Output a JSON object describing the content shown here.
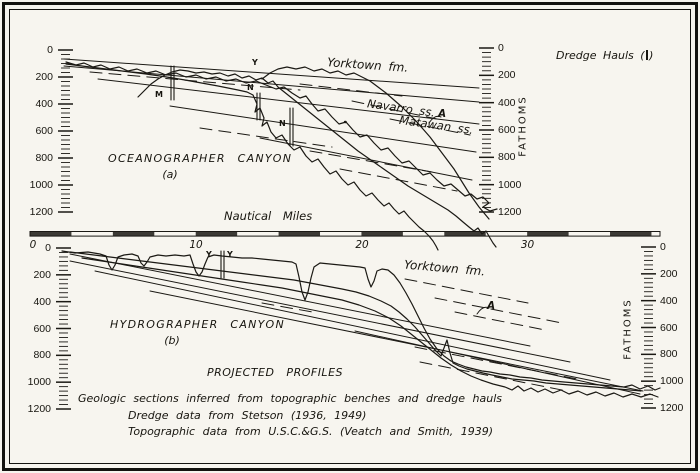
{
  "legend": {
    "label": "Dredge Hauls",
    "paren_open": "(",
    "paren_close": ")",
    "symbol": "dredge-haul-vertical-bar"
  },
  "x_axis": {
    "title": "Nautical Miles",
    "ticks": [
      "0",
      "10",
      "20",
      "30"
    ]
  },
  "y_axis": {
    "unit": "FATHOMS",
    "ticks": [
      "0",
      "200",
      "400",
      "600",
      "800",
      "1000",
      "1200"
    ]
  },
  "panels": [
    {
      "title": "OCEANOGRAPHER  CANYON",
      "subtitle": "(a)",
      "strata": {
        "yorktown": "Yorktown  fm.",
        "navarro": "Navarro  ss.",
        "matawan": "Matawan  ss."
      },
      "section_label": "A",
      "markers": [
        "M",
        "Y",
        "N",
        "N"
      ]
    },
    {
      "title": "HYDROGRAPHER  CANYON",
      "subtitle": "(b)",
      "strata": {
        "yorktown": "Yorktown  fm."
      },
      "section_label": "A",
      "markers": [
        "Y",
        "Y"
      ]
    }
  ],
  "captions": {
    "title": "PROJECTED  PROFILES",
    "line1": "Geologic sections inferred from topographic benches and dredge hauls",
    "line2": "Dredge data from Stetson (1936, 1949)",
    "line3": "Topographic data from U.S.C.&G.S. (Veatch and Smith, 1939)"
  },
  "chart_data": {
    "type": "line",
    "title": "Projected profiles with geologic sections inferred from topographic benches and dredge hauls",
    "xlabel": "Nautical Miles",
    "x_ticks": [
      0,
      10,
      20,
      30
    ],
    "ylabel": "Fathoms",
    "y_ticks": [
      0,
      200,
      400,
      600,
      800,
      1000,
      1200
    ],
    "panels": [
      {
        "label": "Oceanographer Canyon (a)",
        "strata": [
          "Yorktown fm.",
          "Navarro ss.",
          "Matawan ss."
        ],
        "dredge_markers": [
          "M",
          "Y",
          "N",
          "N"
        ]
      },
      {
        "label": "Hydrographer Canyon (b)",
        "strata": [
          "Yorktown fm."
        ],
        "dredge_markers": [
          "Y",
          "Y"
        ]
      }
    ]
  },
  "drawing": {
    "stroke": "#1b1914",
    "groups": [
      {
        "name": "top-strata-solid",
        "w": 1,
        "paths": [
          "M64,59 L479,88",
          "M64,66 L479,102",
          "M98,79 L479,124",
          "M170,106 L476,152",
          "M260,138 L472,180"
        ]
      },
      {
        "name": "top-strata-dashed",
        "w": 1,
        "dash": "12 7",
        "paths": [
          "M90,72 L300,90",
          "M300,84 L402,96",
          "M352,101 L437,119",
          "M390,119 L470,135",
          "M200,128 L332,147",
          "M310,151 L432,172",
          "M340,169 L457,191"
        ]
      },
      {
        "name": "top-profile-1",
        "w": 1.2,
        "paths": [
          "M66,62 L76,65 84,63 93,67 101,65 110,69 119,67 128,71 137,69 147,73 156,71 166,75 176,73 186,77 196,75 206,79 216,77 226,81 236,79 246,83 256,81 266,85 276,89 284,87 292,93 300,98 306,96 312,104 318,111 325,109 332,117 339,124 346,122 353,130 360,137 367,135 374,143 381,150 388,148 395,156 402,163 409,161 416,168 423,175 430,173 437,180 444,186 451,184 458,190 465,196 471,194 477,199 483,197 489,203 483,207 490,211 497,209"
        ]
      },
      {
        "name": "top-profile-2",
        "w": 1.2,
        "paths": [
          "M138,97 L145,90 151,84 158,79 165,75 172,72 180,70 188,71 196,73 204,72 212,74 220,73 228,76 235,74 242,78 249,76 256,80 262,78 268,83 273,81 278,87 288,95 298,103 308,111 318,119 328,127 338,135 348,143 358,151 368,158 378,165 388,172 398,179 408,186 418,192 428,198 438,204 448,210 456,216 463,222 469,227 474,231 478,228 482,234 486,231 490,238 493,243 496,247"
        ]
      },
      {
        "name": "top-profile-3",
        "w": 1.2,
        "paths": [
          "M66,64 L82,66 98,68 114,70 130,72 146,74 160,76 173,78 185,80 196,82 207,84 218,86 228,88 238,90 247,92 253,95 257,104 255,112 260,108 264,118 262,126 267,122 271,132 276,138 282,135 288,144 294,150 300,147 306,156 312,162 318,159 324,167 330,174 336,171 342,179 348,185 354,182 360,190 366,196 372,193 378,200 384,206 389,203 394,209 399,214 404,211 409,217 414,222 419,227 424,231 429,236 433,241 436,246 438,250"
        ]
      },
      {
        "name": "top-profile-4",
        "w": 1.2,
        "paths": [
          "M262,79 L270,73 278,69 287,67 296,69 305,67 314,71 322,69 330,73 338,71 346,75 354,73 362,77 370,81 378,87 386,93 394,100 402,107 409,114 416,121 423,129 430,137 436,145 442,153 448,161 454,169 459,177 464,185 469,193 474,200 479,207 484,213 489,219"
        ]
      },
      {
        "name": "top-dredge-bars",
        "w": 1.1,
        "paths": [
          "M171,66 L171,100",
          "M174,66 L174,100",
          "M257,93 L257,120",
          "M260,93 L260,120",
          "M290,108 L290,146",
          "M293,108 L293,146"
        ]
      },
      {
        "name": "top-a-arrow",
        "w": 1,
        "paths": [
          "M429,123 Q435,114 441,117"
        ]
      },
      {
        "name": "dredge-dot",
        "w": 2.4,
        "paths": [
          "M345,122 L345.6,122"
        ]
      },
      {
        "name": "bottom-strata-solid",
        "w": 1,
        "paths": [
          "M70,254 L530,346",
          "M70,261 L570,362",
          "M95,271 L610,380",
          "M150,291 L643,391",
          "M355,331 L640,394"
        ]
      },
      {
        "name": "bottom-strata-dashed",
        "w": 1,
        "dash": "12 7",
        "paths": [
          "M405,279 L528,303",
          "M435,298 L562,323",
          "M455,312 L545,330",
          "M415,347 L577,379",
          "M420,362 L567,391",
          "M262,303 L318,313"
        ]
      },
      {
        "name": "bottom-profile-1",
        "w": 1.2,
        "paths": [
          "M62,251 L75,253 88,252 100,254 106,256 109,265 112,270 115,265 118,257 124,255 132,254 138,256 141,263 144,266 147,262 150,257 158,255 166,256 175,255 184,256 190,255 193,264 196,272 199,276 202,272 205,264 208,257 214,255 222,256 232,257 242,258 252,258 262,259 272,260 282,261 292,262 296,264 299,277 302,292 305,300 308,292 311,278 314,267 320,263 330,264 340,265 350,266 360,267 365,268 368,279 371,287 374,281 377,271 382,269 388,270 394,275 400,283 406,293 412,304 418,316 424,328 430,339 437,349 444,356 451,361 458,364 466,367 474,369 482,371 490,372 500,374 510,375 520,377 531,378 542,380 553,381 564,382 576,383 588,384 600,385 612,386 624,387 632,385 640,389 648,386 655,390 660,388"
        ]
      },
      {
        "name": "bottom-profile-2",
        "w": 1.2,
        "paths": [
          "M70,252 L86,254 102,256 118,258 134,260 150,262 166,264 182,266 198,268 214,270 230,272 246,274 262,276 278,278 294,280 310,283 326,286 342,289 356,292 369,296 381,301 391,306 399,312 407,319 415,327 422,335 429,343 435,350 441,356 444,348 447,340 450,353 453,363 459,366 467,369 475,371 483,373 492,375 502,377 512,379 523,380 534,381 546,383 558,384 570,385 582,386 594,387 606,388 618,389 630,390 641,391"
        ]
      },
      {
        "name": "bottom-profile-3",
        "w": 1.2,
        "paths": [
          "M82,258 L102,261 122,264 142,267 162,270 182,273 202,276 222,279 242,282 262,285 282,288 302,292 322,296 342,300 359,305 375,311 389,318 401,326 411,334 421,342 431,350 441,358 451,365 461,371 471,376 481,380 493,384 505,387 512,390 518,386 524,391 531,388 538,392 545,389 553,393 561,390 569,394 578,391 587,395 596,392 605,396 614,393 623,397 632,394 641,397 650,394 658,397"
        ]
      },
      {
        "name": "bottom-dredge-bars",
        "w": 1.1,
        "paths": [
          "M221,251 L221,278",
          "M224,251 L224,278"
        ]
      },
      {
        "name": "bottom-a-arrow",
        "w": 1,
        "paths": [
          "M477,314 Q483,305 489,308"
        ]
      }
    ]
  }
}
